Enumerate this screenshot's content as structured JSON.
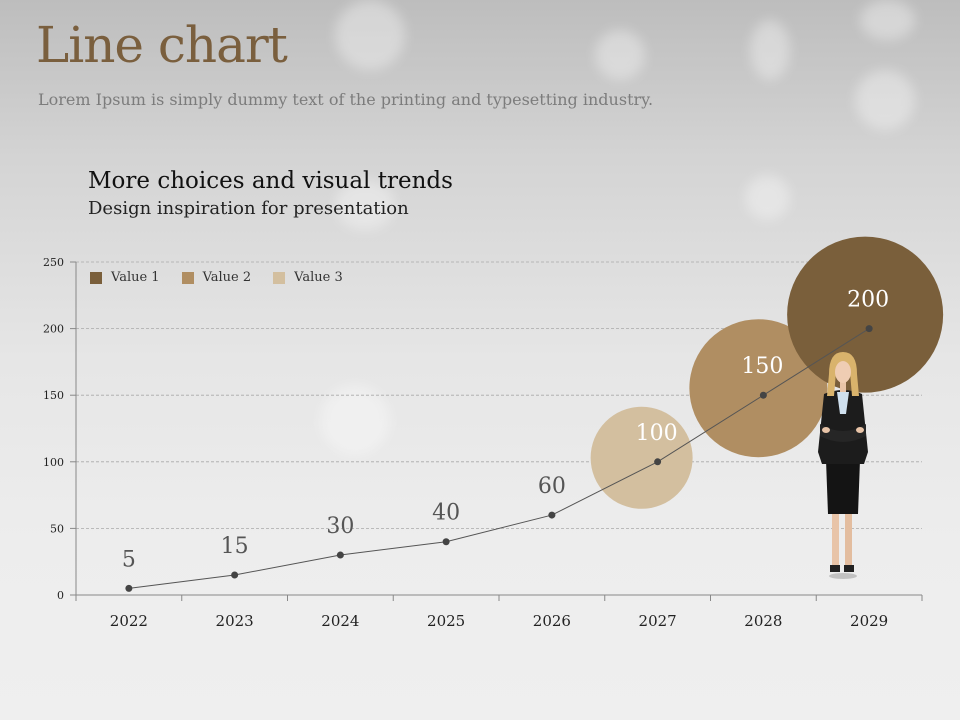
{
  "slide": {
    "title": "Line chart",
    "subtitle": "Lorem Ipsum is simply dummy text of the printing and typesetting industry."
  },
  "chart_heading": "More choices and visual trends",
  "chart_subheading": "Design inspiration for presentation",
  "colors": {
    "title": "#7a5f3e",
    "value1": "#7a5f3b",
    "value2": "#b08e62",
    "value3": "#d3bf9f",
    "line": "#555555"
  },
  "chart_data": {
    "type": "line",
    "categories": [
      "2022",
      "2023",
      "2024",
      "2025",
      "2026",
      "2027",
      "2028",
      "2029"
    ],
    "values": [
      5,
      15,
      30,
      40,
      60,
      100,
      150,
      200
    ],
    "ylim": [
      0,
      250
    ],
    "yticks": [
      0,
      50,
      100,
      150,
      200,
      250
    ],
    "grid": true,
    "legend_position": "top-left",
    "legend": [
      "Value 1",
      "Value 2",
      "Value 3"
    ],
    "highlights": [
      {
        "category": "2027",
        "value": 100,
        "series": "Value 3"
      },
      {
        "category": "2028",
        "value": 150,
        "series": "Value 2"
      },
      {
        "category": "2029",
        "value": 200,
        "series": "Value 1"
      }
    ]
  }
}
